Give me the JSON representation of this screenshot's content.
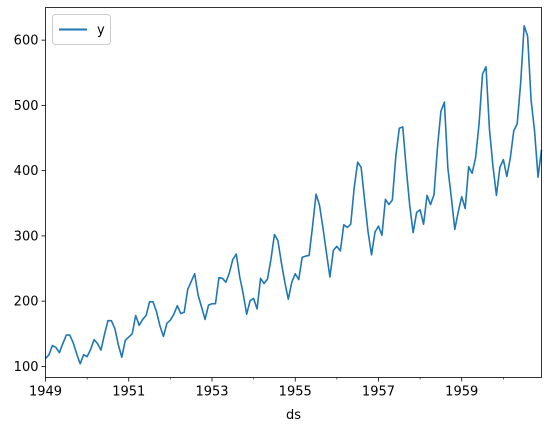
{
  "chart_data": {
    "type": "line",
    "xlabel": "ds",
    "ylabel": "",
    "xlim": [
      "1949-01",
      "1960-12"
    ],
    "ylim": [
      83,
      650
    ],
    "x_ticks": [
      "1949",
      "1951",
      "1953",
      "1955",
      "1957",
      "1959"
    ],
    "y_ticks": [
      100,
      200,
      300,
      400,
      500,
      600
    ],
    "grid": false,
    "legend": {
      "placement": "top-left",
      "entries": [
        "y"
      ]
    },
    "colors": {
      "y": "#1f77b4"
    },
    "series": [
      {
        "name": "y",
        "x_start": "1949-01",
        "frequency": "monthly",
        "values": [
          112,
          118,
          132,
          129,
          121,
          135,
          148,
          148,
          136,
          119,
          104,
          118,
          115,
          126,
          141,
          135,
          125,
          149,
          170,
          170,
          158,
          133,
          114,
          140,
          145,
          150,
          178,
          163,
          172,
          178,
          199,
          199,
          184,
          162,
          146,
          166,
          171,
          180,
          193,
          181,
          183,
          218,
          230,
          242,
          209,
          191,
          172,
          194,
          196,
          196,
          236,
          235,
          229,
          243,
          264,
          272,
          237,
          211,
          180,
          201,
          204,
          188,
          235,
          227,
          234,
          264,
          302,
          293,
          259,
          229,
          203,
          229,
          242,
          233,
          267,
          269,
          270,
          315,
          364,
          347,
          312,
          274,
          237,
          278,
          284,
          277,
          317,
          313,
          318,
          374,
          413,
          405,
          355,
          306,
          271,
          306,
          315,
          301,
          356,
          348,
          355,
          422,
          465,
          467,
          404,
          347,
          305,
          336,
          340,
          318,
          362,
          348,
          363,
          435,
          491,
          505,
          404,
          359,
          310,
          337,
          360,
          342,
          406,
          396,
          420,
          472,
          548,
          559,
          463,
          407,
          362,
          405,
          417,
          391,
          419,
          461,
          472,
          535,
          622,
          606,
          508,
          461,
          390,
          432
        ]
      }
    ]
  }
}
